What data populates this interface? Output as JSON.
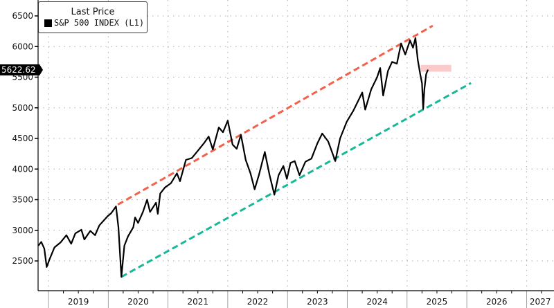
{
  "chart_data": {
    "type": "line",
    "title": "",
    "legend": {
      "title": "Last Price",
      "entries": [
        "S&P 500 INDEX  (L1)"
      ],
      "placement": "top-left"
    },
    "last_value_label": "5622.62",
    "xlabel": "",
    "ylabel": "",
    "ylim": [
      2000,
      6700
    ],
    "yticks": [
      2500,
      3000,
      3500,
      4000,
      4500,
      5000,
      5500,
      6000,
      6500
    ],
    "xticks": [
      "2019",
      "2020",
      "2021",
      "2022",
      "2023",
      "2024",
      "2025",
      "2026",
      "2027"
    ],
    "grid": true,
    "series": [
      {
        "name": "S&P 500 INDEX",
        "color": "#000000",
        "points": [
          [
            2018.83,
            2750
          ],
          [
            2018.88,
            2810
          ],
          [
            2018.93,
            2700
          ],
          [
            2018.97,
            2400
          ],
          [
            2019.02,
            2530
          ],
          [
            2019.1,
            2720
          ],
          [
            2019.2,
            2800
          ],
          [
            2019.3,
            2920
          ],
          [
            2019.38,
            2780
          ],
          [
            2019.45,
            2950
          ],
          [
            2019.55,
            3010
          ],
          [
            2019.6,
            2850
          ],
          [
            2019.7,
            2990
          ],
          [
            2019.78,
            2920
          ],
          [
            2019.85,
            3080
          ],
          [
            2019.99,
            3230
          ],
          [
            2020.05,
            3280
          ],
          [
            2020.13,
            3390
          ],
          [
            2020.17,
            3050
          ],
          [
            2020.22,
            2240
          ],
          [
            2020.27,
            2750
          ],
          [
            2020.33,
            2900
          ],
          [
            2020.42,
            3050
          ],
          [
            2020.45,
            3210
          ],
          [
            2020.5,
            3120
          ],
          [
            2020.58,
            3300
          ],
          [
            2020.65,
            3500
          ],
          [
            2020.7,
            3300
          ],
          [
            2020.8,
            3450
          ],
          [
            2020.83,
            3270
          ],
          [
            2020.87,
            3600
          ],
          [
            2020.95,
            3700
          ],
          [
            2021.05,
            3770
          ],
          [
            2021.15,
            3930
          ],
          [
            2021.2,
            3800
          ],
          [
            2021.3,
            4150
          ],
          [
            2021.4,
            4180
          ],
          [
            2021.5,
            4300
          ],
          [
            2021.6,
            4420
          ],
          [
            2021.68,
            4530
          ],
          [
            2021.75,
            4320
          ],
          [
            2021.85,
            4680
          ],
          [
            2021.92,
            4600
          ],
          [
            2022.0,
            4790
          ],
          [
            2022.08,
            4400
          ],
          [
            2022.15,
            4330
          ],
          [
            2022.22,
            4560
          ],
          [
            2022.3,
            4150
          ],
          [
            2022.38,
            3930
          ],
          [
            2022.45,
            3670
          ],
          [
            2022.52,
            3900
          ],
          [
            2022.62,
            4280
          ],
          [
            2022.7,
            3900
          ],
          [
            2022.78,
            3580
          ],
          [
            2022.85,
            3900
          ],
          [
            2022.93,
            4050
          ],
          [
            2022.99,
            3840
          ],
          [
            2023.05,
            4100
          ],
          [
            2023.12,
            4130
          ],
          [
            2023.2,
            3900
          ],
          [
            2023.3,
            4120
          ],
          [
            2023.4,
            4170
          ],
          [
            2023.5,
            4420
          ],
          [
            2023.58,
            4580
          ],
          [
            2023.68,
            4450
          ],
          [
            2023.8,
            4130
          ],
          [
            2023.88,
            4500
          ],
          [
            2023.99,
            4770
          ],
          [
            2024.1,
            4950
          ],
          [
            2024.2,
            5150
          ],
          [
            2024.25,
            5250
          ],
          [
            2024.3,
            4970
          ],
          [
            2024.4,
            5300
          ],
          [
            2024.5,
            5500
          ],
          [
            2024.55,
            5650
          ],
          [
            2024.6,
            5200
          ],
          [
            2024.68,
            5600
          ],
          [
            2024.75,
            5750
          ],
          [
            2024.83,
            5720
          ],
          [
            2024.9,
            6050
          ],
          [
            2024.97,
            5870
          ],
          [
            2025.05,
            6100
          ],
          [
            2025.1,
            5980
          ],
          [
            2025.14,
            6140
          ],
          [
            2025.18,
            5780
          ],
          [
            2025.22,
            5550
          ],
          [
            2025.25,
            5400
          ],
          [
            2025.27,
            4980
          ],
          [
            2025.29,
            5300
          ],
          [
            2025.32,
            5550
          ],
          [
            2025.35,
            5622.62
          ]
        ]
      }
    ],
    "trendlines": [
      {
        "name": "upper-resistance",
        "color": "#f4604a",
        "from": [
          2020.16,
          3420
        ],
        "to": [
          2025.43,
          6340
        ]
      },
      {
        "name": "lower-support",
        "color": "#17b897",
        "from": [
          2020.22,
          2240
        ],
        "to": [
          2026.07,
          5404
        ]
      }
    ],
    "shaded_band": {
      "color": "#fbcaca",
      "x": [
        2025.23,
        2025.74
      ],
      "y": [
        5590,
        5700
      ]
    }
  }
}
